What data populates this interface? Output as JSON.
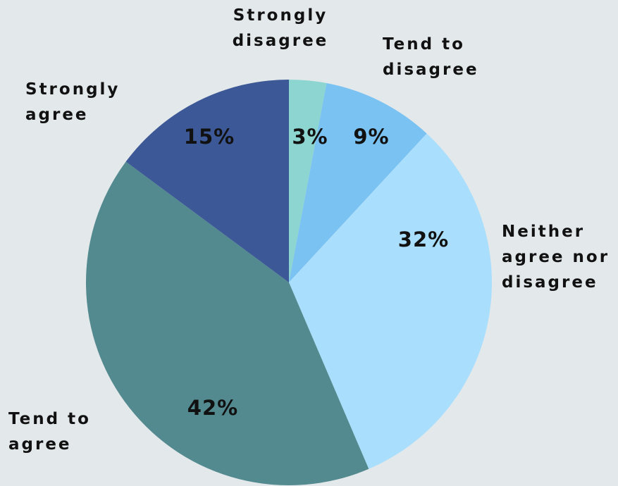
{
  "chart_data": {
    "type": "pie",
    "start_angle_deg": 0,
    "direction": "clockwise",
    "slices": [
      {
        "label": [
          "Strongly",
          "disagree"
        ],
        "value": 3,
        "value_label": "3%",
        "color": "#8dd5d0"
      },
      {
        "label": [
          "Tend to",
          "disagree"
        ],
        "value": 9,
        "value_label": "9%",
        "color": "#7ac2f2"
      },
      {
        "label": [
          "Neither",
          "agree nor",
          "disagree"
        ],
        "value": 32,
        "value_label": "32%",
        "color": "#a9defc"
      },
      {
        "label": [
          "Tend to",
          "agree"
        ],
        "value": 42,
        "value_label": "42%",
        "color": "#538a8f"
      },
      {
        "label": [
          "Strongly",
          "agree"
        ],
        "value": 15,
        "value_label": "15%",
        "color": "#3c5896"
      }
    ]
  }
}
